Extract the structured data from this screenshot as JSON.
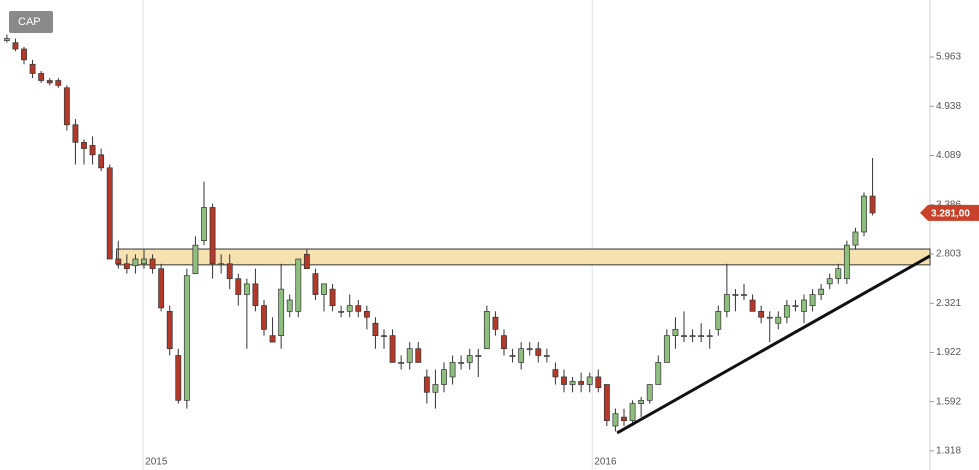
{
  "chart_data": {
    "type": "candlestick",
    "legend": "CAP",
    "log_scale": true,
    "ylim": [
      1225,
      7420
    ],
    "yticks": [
      {
        "value": 1318,
        "label": "1.318"
      },
      {
        "value": 1592,
        "label": "1.592"
      },
      {
        "value": 1922,
        "label": "1.922"
      },
      {
        "value": 2321,
        "label": "2.321"
      },
      {
        "value": 2803,
        "label": "2.803"
      },
      {
        "value": 3386,
        "label": "3.386"
      },
      {
        "value": 4089,
        "label": "4.089"
      },
      {
        "value": 4938,
        "label": "4.938"
      },
      {
        "value": 5963,
        "label": "5.963"
      }
    ],
    "xlim": [
      -0.8,
      107.7
    ],
    "xticks": [
      {
        "value": 15.9,
        "label": "2015"
      },
      {
        "value": 68.3,
        "label": "2016"
      }
    ],
    "up_color": "#8fbf7f",
    "down_color": "#b33a2a",
    "open": [
      6350,
      6300,
      6150,
      5800,
      5600,
      5450,
      5450,
      5300,
      4600,
      4300,
      4250,
      4100,
      3900,
      2750,
      2700,
      2680,
      2700,
      2750,
      2650,
      2250,
      1900,
      1600,
      2600,
      2950,
      3350,
      2700,
      2700,
      2550,
      2400,
      2500,
      2300,
      2050,
      2050,
      2250,
      2250,
      2800,
      2600,
      2400,
      2450,
      2250,
      2250,
      2300,
      2250,
      2150,
      2050,
      2050,
      1850,
      1850,
      1950,
      1750,
      1650,
      1700,
      1750,
      1850,
      1850,
      1900,
      1950,
      2200,
      2050,
      1900,
      1850,
      1950,
      1950,
      1900,
      1800,
      1750,
      1700,
      1720,
      1700,
      1750,
      1700,
      1450,
      1500,
      1480,
      1580,
      1600,
      1700,
      1850,
      2050,
      2050,
      2050,
      2050,
      2050,
      2100,
      2250,
      2400,
      2400,
      2350,
      2250,
      2200,
      2150,
      2200,
      2300,
      2250,
      2300,
      2400,
      2500,
      2550,
      2550,
      2900,
      3050,
      3500
    ],
    "high": [
      6500,
      6400,
      6200,
      5900,
      5650,
      5500,
      5500,
      5350,
      4700,
      4350,
      4400,
      4200,
      3950,
      2950,
      2800,
      2800,
      2850,
      2800,
      2700,
      2300,
      1950,
      2650,
      3000,
      3700,
      3400,
      2800,
      2800,
      2600,
      2550,
      2650,
      2350,
      2200,
      2700,
      2400,
      2750,
      2850,
      2650,
      2500,
      2500,
      2300,
      2400,
      2350,
      2300,
      2200,
      2100,
      2100,
      1900,
      2000,
      2000,
      1800,
      1800,
      1850,
      1900,
      1900,
      1950,
      1950,
      2300,
      2250,
      2100,
      1950,
      2000,
      2000,
      2000,
      1950,
      1850,
      1800,
      1750,
      1780,
      1780,
      1800,
      1700,
      1550,
      1550,
      1600,
      1620,
      1700,
      1900,
      2100,
      2200,
      2250,
      2100,
      2150,
      2100,
      2300,
      2700,
      2450,
      2500,
      2400,
      2300,
      2250,
      2250,
      2350,
      2350,
      2400,
      2450,
      2500,
      2600,
      2700,
      2950,
      3100,
      3550,
      4050
    ],
    "low": [
      6300,
      6100,
      5800,
      5500,
      5400,
      5350,
      5300,
      4500,
      3950,
      3950,
      3950,
      3850,
      2750,
      2650,
      2600,
      2600,
      2650,
      2600,
      2250,
      1900,
      1580,
      1550,
      2600,
      2900,
      2550,
      2600,
      2450,
      2300,
      1950,
      2250,
      2050,
      2000,
      1950,
      2200,
      2200,
      2650,
      2350,
      2250,
      2250,
      2200,
      2200,
      2200,
      2100,
      1950,
      1950,
      1850,
      1800,
      1800,
      1850,
      1580,
      1550,
      1650,
      1700,
      1800,
      1800,
      1750,
      1950,
      2050,
      1900,
      1850,
      1800,
      1900,
      1850,
      1850,
      1700,
      1650,
      1650,
      1650,
      1650,
      1650,
      1450,
      1420,
      1450,
      1450,
      1500,
      1580,
      1700,
      1850,
      1950,
      2000,
      2000,
      2000,
      1950,
      2050,
      2200,
      2250,
      2350,
      2250,
      2150,
      2000,
      2100,
      2150,
      2250,
      2150,
      2250,
      2350,
      2450,
      2500,
      2500,
      2850,
      3000,
      3250
    ],
    "close": [
      6400,
      6150,
      5900,
      5600,
      5450,
      5400,
      5350,
      4600,
      4300,
      4200,
      4100,
      3900,
      2750,
      2700,
      2650,
      2750,
      2750,
      2650,
      2280,
      1950,
      1600,
      2580,
      2900,
      3350,
      2700,
      2700,
      2550,
      2400,
      2500,
      2300,
      2100,
      2000,
      2450,
      2350,
      2750,
      2650,
      2400,
      2500,
      2300,
      2250,
      2300,
      2250,
      2200,
      2050,
      2050,
      1850,
      1850,
      1950,
      1850,
      1650,
      1700,
      1800,
      1850,
      1850,
      1900,
      1900,
      2250,
      2100,
      1950,
      1900,
      1950,
      1950,
      1900,
      1900,
      1750,
      1700,
      1720,
      1700,
      1750,
      1680,
      1480,
      1520,
      1480,
      1580,
      1600,
      1700,
      1850,
      2050,
      2100,
      2050,
      2050,
      2050,
      2050,
      2250,
      2400,
      2400,
      2400,
      2250,
      2200,
      2200,
      2200,
      2300,
      2300,
      2350,
      2400,
      2450,
      2550,
      2650,
      2900,
      3050,
      3500,
      3281
    ],
    "support_zone": [
      2689,
      2857
    ],
    "zone_start": 12.8,
    "trendline": {
      "x": [
        71.2,
        107.7
      ],
      "y": [
        1412,
        2782
      ]
    },
    "last_price": {
      "value": 3281,
      "label": "3.281,00"
    }
  }
}
